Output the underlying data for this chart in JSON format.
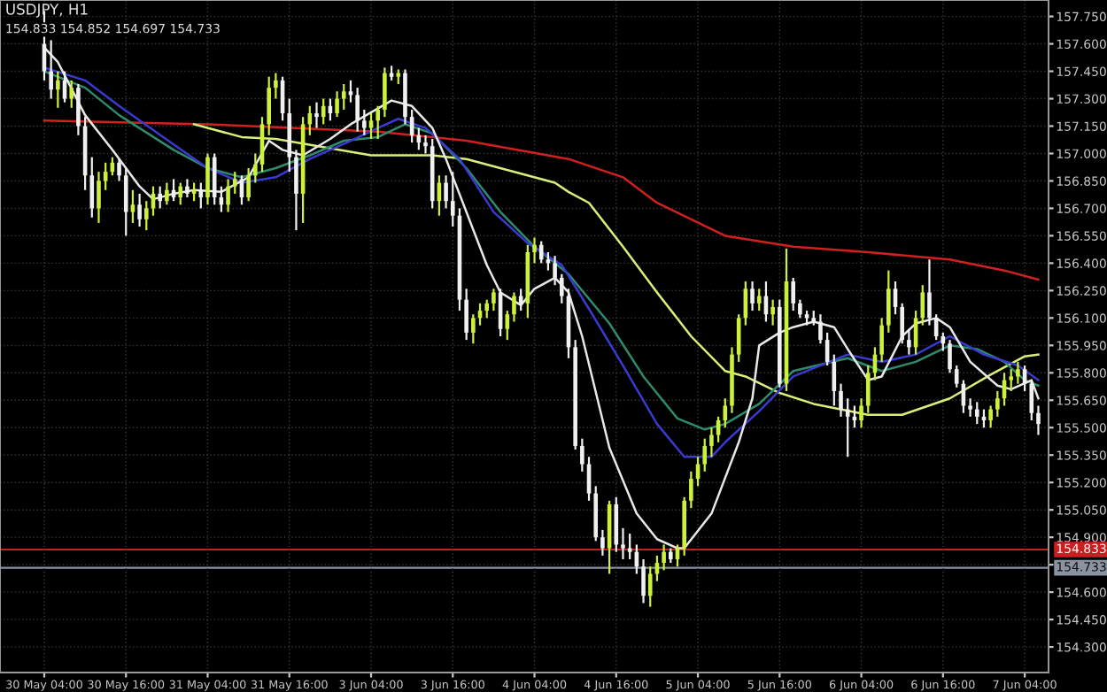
{
  "chart_data": {
    "type": "candlestick",
    "title": "USDJPY, H1",
    "subtitle": "154.833 154.852 154.697 154.733",
    "categories": [
      "30 May 04:00",
      null,
      null,
      null,
      null,
      null,
      null,
      null,
      null,
      null,
      null,
      null,
      "30 May 16:00",
      null,
      null,
      null,
      null,
      null,
      null,
      null,
      null,
      null,
      null,
      null,
      "31 May 04:00",
      null,
      null,
      null,
      null,
      null,
      null,
      null,
      null,
      null,
      null,
      null,
      "31 May 16:00",
      null,
      null,
      null,
      null,
      null,
      null,
      null,
      null,
      null,
      null,
      null,
      "3 Jun 04:00",
      null,
      null,
      null,
      null,
      null,
      null,
      null,
      null,
      null,
      null,
      null,
      "3 Jun 16:00",
      null,
      null,
      null,
      null,
      null,
      null,
      null,
      null,
      null,
      null,
      null,
      "4 Jun 04:00",
      null,
      null,
      null,
      null,
      null,
      null,
      null,
      null,
      null,
      null,
      null,
      "4 Jun 16:00",
      null,
      null,
      null,
      null,
      null,
      null,
      null,
      null,
      null,
      null,
      null,
      "5 Jun 04:00",
      null,
      null,
      null,
      null,
      null,
      null,
      null,
      null,
      null,
      null,
      null,
      "5 Jun 16:00",
      null,
      null,
      null,
      null,
      null,
      null,
      null,
      null,
      null,
      null,
      null,
      "6 Jun 04:00",
      null,
      null,
      null,
      null,
      null,
      null,
      null,
      null,
      null,
      null,
      null,
      "6 Jun 16:00",
      null,
      null,
      null,
      null,
      null,
      null,
      null,
      null,
      null,
      null,
      null,
      "7 Jun 04:00",
      null,
      null
    ],
    "ohlc": [
      [
        157.6,
        157.78,
        157.4,
        157.45
      ],
      [
        157.45,
        157.62,
        157.3,
        157.35
      ],
      [
        157.35,
        157.45,
        157.25,
        157.4
      ],
      [
        157.4,
        157.45,
        157.28,
        157.3
      ],
      [
        157.3,
        157.4,
        157.25,
        157.36
      ],
      [
        157.36,
        157.38,
        157.1,
        157.15
      ],
      [
        157.15,
        157.2,
        156.8,
        156.88
      ],
      [
        156.88,
        156.98,
        156.65,
        156.7
      ],
      [
        156.7,
        156.9,
        156.62,
        156.85
      ],
      [
        156.85,
        156.95,
        156.8,
        156.9
      ],
      [
        156.9,
        156.98,
        156.88,
        156.95
      ],
      [
        156.95,
        156.97,
        156.85,
        156.88
      ],
      [
        156.88,
        156.92,
        156.55,
        156.68
      ],
      [
        156.68,
        156.8,
        156.62,
        156.72
      ],
      [
        156.72,
        156.78,
        156.6,
        156.64
      ],
      [
        156.64,
        156.74,
        156.58,
        156.7
      ],
      [
        156.7,
        156.82,
        156.66,
        156.78
      ],
      [
        156.78,
        156.82,
        156.7,
        156.74
      ],
      [
        156.74,
        156.84,
        156.72,
        156.8
      ],
      [
        156.8,
        156.86,
        156.74,
        156.76
      ],
      [
        156.76,
        156.84,
        156.72,
        156.82
      ],
      [
        156.82,
        156.86,
        156.76,
        156.78
      ],
      [
        156.78,
        156.84,
        156.74,
        156.8
      ],
      [
        156.8,
        156.84,
        156.7,
        156.76
      ],
      [
        156.76,
        157.0,
        156.72,
        156.98
      ],
      [
        156.98,
        157.0,
        156.72,
        156.76
      ],
      [
        156.76,
        156.82,
        156.68,
        156.72
      ],
      [
        156.72,
        156.86,
        156.68,
        156.82
      ],
      [
        156.82,
        156.9,
        156.78,
        156.86
      ],
      [
        156.86,
        156.88,
        156.72,
        156.76
      ],
      [
        156.76,
        156.92,
        156.74,
        156.88
      ],
      [
        156.88,
        157.0,
        156.84,
        156.94
      ],
      [
        156.94,
        157.2,
        156.9,
        157.16
      ],
      [
        157.16,
        157.42,
        157.1,
        157.36
      ],
      [
        157.36,
        157.44,
        157.3,
        157.4
      ],
      [
        157.4,
        157.42,
        157.18,
        157.22
      ],
      [
        157.22,
        157.3,
        156.9,
        156.98
      ],
      [
        156.98,
        157.02,
        156.58,
        156.78
      ],
      [
        156.78,
        157.2,
        156.62,
        157.16
      ],
      [
        157.16,
        157.26,
        157.1,
        157.22
      ],
      [
        157.22,
        157.28,
        157.14,
        157.2
      ],
      [
        157.2,
        157.3,
        157.16,
        157.26
      ],
      [
        157.26,
        157.3,
        157.18,
        157.22
      ],
      [
        157.22,
        157.34,
        157.2,
        157.3
      ],
      [
        157.3,
        157.38,
        157.24,
        157.34
      ],
      [
        157.34,
        157.4,
        157.28,
        157.32
      ],
      [
        157.32,
        157.36,
        157.12,
        157.18
      ],
      [
        157.18,
        157.24,
        157.1,
        157.14
      ],
      [
        157.14,
        157.22,
        157.08,
        157.18
      ],
      [
        157.18,
        157.26,
        157.08,
        157.24
      ],
      [
        157.24,
        157.47,
        157.2,
        157.44
      ],
      [
        157.44,
        157.48,
        157.4,
        157.42
      ],
      [
        157.42,
        157.46,
        157.38,
        157.44
      ],
      [
        157.44,
        157.46,
        157.16,
        157.2
      ],
      [
        157.2,
        157.24,
        157.06,
        157.1
      ],
      [
        157.1,
        157.14,
        157.02,
        157.06
      ],
      [
        157.06,
        157.1,
        157.0,
        157.04
      ],
      [
        157.04,
        157.08,
        156.7,
        156.74
      ],
      [
        156.74,
        156.88,
        156.66,
        156.84
      ],
      [
        156.84,
        156.88,
        156.7,
        156.74
      ],
      [
        156.74,
        156.9,
        156.6,
        156.66
      ],
      [
        156.66,
        156.7,
        156.14,
        156.2
      ],
      [
        156.2,
        156.26,
        155.98,
        156.02
      ],
      [
        156.02,
        156.12,
        155.96,
        156.1
      ],
      [
        156.1,
        156.18,
        156.06,
        156.14
      ],
      [
        156.14,
        156.2,
        156.1,
        156.18
      ],
      [
        156.18,
        156.26,
        156.14,
        156.24
      ],
      [
        156.24,
        156.26,
        156.0,
        156.04
      ],
      [
        156.04,
        156.14,
        155.98,
        156.12
      ],
      [
        156.12,
        156.24,
        156.08,
        156.22
      ],
      [
        156.22,
        156.26,
        156.14,
        156.18
      ],
      [
        156.18,
        156.5,
        156.1,
        156.46
      ],
      [
        156.46,
        156.54,
        156.4,
        156.5
      ],
      [
        156.5,
        156.52,
        156.4,
        156.42
      ],
      [
        156.42,
        156.46,
        156.36,
        156.4
      ],
      [
        156.4,
        156.44,
        156.28,
        156.32
      ],
      [
        156.32,
        156.34,
        156.18,
        156.22
      ],
      [
        156.22,
        156.26,
        155.88,
        155.94
      ],
      [
        155.94,
        155.98,
        155.38,
        155.4
      ],
      [
        155.4,
        155.44,
        155.26,
        155.3
      ],
      [
        155.3,
        155.34,
        155.1,
        155.14
      ],
      [
        155.14,
        155.18,
        154.88,
        154.9
      ],
      [
        154.9,
        154.94,
        154.8,
        154.84
      ],
      [
        154.84,
        155.1,
        154.7,
        155.08
      ],
      [
        155.08,
        155.12,
        154.82,
        154.86
      ],
      [
        154.86,
        154.95,
        154.78,
        154.84
      ],
      [
        154.84,
        154.92,
        154.78,
        154.82
      ],
      [
        154.82,
        154.86,
        154.7,
        154.74
      ],
      [
        154.74,
        154.78,
        154.54,
        154.58
      ],
      [
        154.58,
        154.74,
        154.52,
        154.7
      ],
      [
        154.7,
        154.8,
        154.66,
        154.76
      ],
      [
        154.76,
        154.86,
        154.72,
        154.82
      ],
      [
        154.82,
        154.84,
        154.76,
        154.78
      ],
      [
        154.78,
        154.86,
        154.74,
        154.84
      ],
      [
        154.84,
        155.12,
        154.8,
        155.1
      ],
      [
        155.1,
        155.26,
        155.06,
        155.22
      ],
      [
        155.22,
        155.34,
        155.18,
        155.3
      ],
      [
        155.3,
        155.44,
        155.26,
        155.4
      ],
      [
        155.4,
        155.5,
        155.34,
        155.46
      ],
      [
        155.46,
        155.56,
        155.42,
        155.54
      ],
      [
        155.54,
        155.66,
        155.5,
        155.62
      ],
      [
        155.62,
        155.94,
        155.58,
        155.9
      ],
      [
        155.9,
        156.12,
        155.86,
        156.1
      ],
      [
        156.1,
        156.3,
        156.06,
        156.26
      ],
      [
        156.26,
        156.3,
        156.14,
        156.18
      ],
      [
        156.18,
        156.26,
        156.14,
        156.22
      ],
      [
        156.22,
        156.3,
        156.08,
        156.12
      ],
      [
        156.12,
        156.2,
        156.06,
        156.16
      ],
      [
        156.16,
        156.2,
        155.72,
        155.74
      ],
      [
        155.74,
        156.48,
        155.7,
        156.3
      ],
      [
        156.3,
        156.32,
        156.14,
        156.18
      ],
      [
        156.18,
        156.2,
        156.1,
        156.12
      ],
      [
        156.12,
        156.14,
        156.06,
        156.1
      ],
      [
        156.1,
        156.14,
        156.06,
        156.08
      ],
      [
        156.08,
        156.12,
        155.96,
        155.98
      ],
      [
        155.98,
        156.02,
        155.84,
        155.86
      ],
      [
        155.86,
        155.9,
        155.62,
        155.7
      ],
      [
        155.7,
        155.74,
        155.56,
        155.6
      ],
      [
        155.6,
        155.66,
        155.34,
        155.56
      ],
      [
        155.56,
        155.62,
        155.5,
        155.54
      ],
      [
        155.54,
        155.66,
        155.5,
        155.62
      ],
      [
        155.62,
        155.84,
        155.58,
        155.8
      ],
      [
        155.8,
        155.94,
        155.76,
        155.9
      ],
      [
        155.9,
        156.1,
        155.86,
        156.06
      ],
      [
        156.06,
        156.36,
        156.02,
        156.26
      ],
      [
        156.26,
        156.3,
        156.12,
        156.16
      ],
      [
        156.16,
        156.18,
        155.96,
        155.98
      ],
      [
        155.98,
        156.04,
        155.9,
        155.94
      ],
      [
        155.94,
        156.14,
        155.9,
        156.1
      ],
      [
        156.1,
        156.28,
        156.06,
        156.24
      ],
      [
        156.24,
        156.42,
        156.06,
        156.1
      ],
      [
        156.1,
        156.12,
        155.98,
        156.0
      ],
      [
        156.0,
        156.02,
        155.92,
        155.96
      ],
      [
        155.96,
        155.98,
        155.8,
        155.82
      ],
      [
        155.82,
        155.84,
        155.72,
        155.74
      ],
      [
        155.74,
        155.76,
        155.58,
        155.62
      ],
      [
        155.62,
        155.66,
        155.56,
        155.6
      ],
      [
        155.6,
        155.64,
        155.52,
        155.56
      ],
      [
        155.56,
        155.6,
        155.5,
        155.54
      ],
      [
        155.54,
        155.62,
        155.5,
        155.6
      ],
      [
        155.6,
        155.7,
        155.56,
        155.66
      ],
      [
        155.66,
        155.8,
        155.62,
        155.76
      ],
      [
        155.76,
        155.82,
        155.7,
        155.78
      ],
      [
        155.78,
        155.86,
        155.74,
        155.82
      ],
      [
        155.82,
        155.84,
        155.7,
        155.74
      ],
      [
        155.74,
        155.76,
        155.54,
        155.58
      ],
      [
        155.58,
        155.62,
        155.46,
        155.52
      ]
    ],
    "colors": [
      "#f0f0f0",
      "#f0f0f0",
      "#ccf03c",
      "#f0f0f0",
      "#ccf03c",
      "#f0f0f0",
      "#f0f0f0",
      "#f0f0f0",
      "#ccf03c",
      "#ccf03c",
      "#ccf03c",
      "#f0f0f0",
      "#f0f0f0",
      "#ccf03c",
      "#f0f0f0",
      "#ccf03c",
      "#ccf03c",
      "#f0f0f0",
      "#ccf03c",
      "#f0f0f0",
      "#ccf03c",
      "#f0f0f0",
      "#ccf03c",
      "#f0f0f0",
      "#ccf03c",
      "#f0f0f0",
      "#f0f0f0",
      "#ccf03c",
      "#ccf03c",
      "#f0f0f0",
      "#ccf03c",
      "#ccf03c",
      "#ccf03c",
      "#ccf03c",
      "#ccf03c",
      "#f0f0f0",
      "#f0f0f0",
      "#f0f0f0",
      "#ccf03c",
      "#ccf03c",
      "#f0f0f0",
      "#ccf03c",
      "#f0f0f0",
      "#ccf03c",
      "#ccf03c",
      "#f0f0f0",
      "#f0f0f0",
      "#f0f0f0",
      "#ccf03c",
      "#ccf03c",
      "#ccf03c",
      "#f0f0f0",
      "#ccf03c",
      "#f0f0f0",
      "#f0f0f0",
      "#f0f0f0",
      "#f0f0f0",
      "#f0f0f0",
      "#ccf03c",
      "#f0f0f0",
      "#f0f0f0",
      "#f0f0f0",
      "#f0f0f0",
      "#ccf03c",
      "#ccf03c",
      "#ccf03c",
      "#ccf03c",
      "#f0f0f0",
      "#ccf03c",
      "#ccf03c",
      "#f0f0f0",
      "#ccf03c",
      "#ccf03c",
      "#f0f0f0",
      "#f0f0f0",
      "#f0f0f0",
      "#f0f0f0",
      "#f0f0f0",
      "#f0f0f0",
      "#f0f0f0",
      "#f0f0f0",
      "#f0f0f0",
      "#f0f0f0",
      "#ccf03c",
      "#f0f0f0",
      "#f0f0f0",
      "#f0f0f0",
      "#f0f0f0",
      "#f0f0f0",
      "#ccf03c",
      "#ccf03c",
      "#ccf03c",
      "#f0f0f0",
      "#ccf03c",
      "#ccf03c",
      "#ccf03c",
      "#ccf03c",
      "#ccf03c",
      "#ccf03c",
      "#ccf03c",
      "#ccf03c",
      "#ccf03c",
      "#ccf03c",
      "#ccf03c",
      "#f0f0f0",
      "#ccf03c",
      "#f0f0f0",
      "#ccf03c",
      "#f0f0f0",
      "#ccf03c",
      "#f0f0f0",
      "#f0f0f0",
      "#f0f0f0",
      "#f0f0f0",
      "#f0f0f0",
      "#f0f0f0",
      "#f0f0f0",
      "#f0f0f0",
      "#f0f0f0",
      "#f0f0f0",
      "#ccf03c",
      "#ccf03c",
      "#ccf03c",
      "#ccf03c",
      "#ccf03c",
      "#f0f0f0",
      "#f0f0f0",
      "#f0f0f0",
      "#ccf03c",
      "#ccf03c",
      "#f0f0f0",
      "#f0f0f0",
      "#f0f0f0",
      "#f0f0f0",
      "#f0f0f0",
      "#f0f0f0",
      "#f0f0f0",
      "#f0f0f0",
      "#f0f0f0",
      "#ccf03c",
      "#ccf03c",
      "#ccf03c",
      "#ccf03c",
      "#ccf03c",
      "#f0f0f0",
      "#f0f0f0",
      "#f0f0f0"
    ],
    "series": [
      {
        "type": "line",
        "color": "#d02020",
        "values": [
          157.18,
          null,
          null,
          null,
          null,
          null,
          null,
          null,
          null,
          null,
          null,
          null,
          null,
          null,
          null,
          null,
          null,
          null,
          null,
          null,
          null,
          null,
          null,
          null,
          157.16,
          null,
          null,
          null,
          null,
          null,
          null,
          null,
          null,
          null,
          null,
          null,
          null,
          null,
          null,
          null,
          null,
          null,
          null,
          null,
          null,
          null,
          null,
          null,
          null,
          157.12,
          null,
          null,
          null,
          null,
          null,
          null,
          null,
          null,
          null,
          null,
          null,
          null,
          157.07,
          null,
          null,
          null,
          null,
          null,
          null,
          null,
          null,
          null,
          null,
          null,
          null,
          null,
          null,
          156.97,
          null,
          null,
          null,
          null,
          null,
          null,
          null,
          156.87,
          null,
          null,
          null,
          null,
          156.73,
          null,
          null,
          null,
          null,
          null,
          null,
          null,
          null,
          null,
          156.55,
          null,
          null,
          null,
          null,
          null,
          null,
          null,
          null,
          null,
          156.49,
          null,
          null,
          null,
          null,
          null,
          null,
          null,
          null,
          null,
          null,
          156.46,
          null,
          null,
          null,
          null,
          null,
          null,
          null,
          null,
          null,
          null,
          null,
          156.42,
          null,
          null,
          null,
          null,
          null,
          null,
          null,
          156.36,
          null,
          null,
          null,
          null,
          156.31
        ]
      },
      {
        "type": "line",
        "color": "#d8f07a",
        "values": [
          null,
          null,
          null,
          null,
          null,
          null,
          null,
          null,
          null,
          null,
          null,
          null,
          null,
          null,
          null,
          null,
          null,
          null,
          null,
          null,
          null,
          null,
          157.16,
          null,
          null,
          null,
          null,
          null,
          null,
          157.09,
          null,
          null,
          null,
          null,
          157.08,
          null,
          null,
          null,
          null,
          null,
          null,
          null,
          null,
          null,
          null,
          null,
          null,
          null,
          156.99,
          null,
          null,
          null,
          null,
          null,
          null,
          null,
          null,
          156.99,
          null,
          null,
          null,
          null,
          156.97,
          null,
          null,
          null,
          null,
          null,
          null,
          null,
          null,
          null,
          null,
          null,
          null,
          156.84,
          null,
          156.79,
          null,
          null,
          156.73,
          null,
          null,
          null,
          null,
          156.49,
          null,
          null,
          null,
          null,
          156.24,
          null,
          null,
          null,
          null,
          156.0,
          null,
          null,
          null,
          null,
          155.81,
          null,
          null,
          155.78,
          null,
          null,
          null,
          null,
          155.69,
          null,
          null,
          null,
          null,
          155.63,
          null,
          null,
          null,
          null,
          null,
          null,
          null,
          155.57,
          null,
          null,
          null,
          null,
          155.57,
          null,
          null,
          null,
          null,
          null,
          null,
          155.66,
          null,
          null,
          null,
          null,
          null,
          155.79,
          null,
          null,
          null,
          null,
          155.89,
          null,
          155.9
        ]
      },
      {
        "type": "line",
        "color": "#2e8b6e",
        "values": [
          157.45,
          null,
          null,
          null,
          null,
          null,
          157.36,
          null,
          null,
          null,
          null,
          157.21,
          null,
          null,
          null,
          null,
          null,
          null,
          null,
          157.02,
          null,
          null,
          null,
          null,
          156.92,
          null,
          null,
          null,
          null,
          156.87,
          null,
          null,
          null,
          null,
          156.92,
          null,
          null,
          null,
          null,
          156.99,
          null,
          null,
          null,
          null,
          157.07,
          null,
          null,
          null,
          null,
          157.09,
          null,
          null,
          null,
          157.16,
          null,
          null,
          null,
          157.11,
          null,
          null,
          null,
          null,
          156.92,
          null,
          null,
          null,
          null,
          156.68,
          null,
          null,
          null,
          null,
          156.49,
          null,
          null,
          null,
          null,
          156.34,
          null,
          null,
          null,
          null,
          null,
          156.07,
          null,
          null,
          null,
          null,
          155.78,
          null,
          null,
          null,
          null,
          155.55,
          null,
          null,
          null,
          155.49,
          null,
          null,
          155.52,
          null,
          null,
          null,
          null,
          155.63,
          null,
          null,
          null,
          null,
          155.81,
          null,
          null,
          null,
          null,
          null,
          null,
          null,
          155.88,
          null,
          null,
          null,
          null,
          155.81,
          null,
          null,
          null,
          null,
          155.86,
          null,
          null,
          null,
          null,
          155.95,
          null,
          null,
          null,
          155.93,
          null,
          null,
          null,
          155.86,
          null,
          null,
          155.76,
          null,
          155.73
        ]
      },
      {
        "type": "line",
        "color": "#3a3ad0",
        "values": [
          157.47,
          null,
          null,
          null,
          null,
          null,
          157.4,
          null,
          null,
          null,
          null,
          157.26,
          null,
          null,
          null,
          null,
          null,
          null,
          null,
          157.05,
          null,
          null,
          null,
          null,
          156.92,
          null,
          null,
          null,
          null,
          156.84,
          null,
          null,
          null,
          null,
          156.87,
          null,
          null,
          null,
          null,
          156.97,
          null,
          null,
          null,
          null,
          null,
          157.07,
          null,
          null,
          null,
          157.14,
          null,
          null,
          157.19,
          null,
          null,
          null,
          157.14,
          null,
          null,
          null,
          null,
          156.97,
          null,
          null,
          null,
          null,
          156.68,
          null,
          null,
          null,
          null,
          156.51,
          null,
          null,
          null,
          null,
          156.39,
          null,
          null,
          null,
          156.15,
          null,
          null,
          null,
          null,
          155.84,
          null,
          null,
          null,
          null,
          155.52,
          null,
          null,
          null,
          155.34,
          null,
          null,
          null,
          155.34,
          null,
          155.42,
          null,
          null,
          null,
          null,
          155.59,
          null,
          null,
          null,
          null,
          155.78,
          null,
          null,
          null,
          null,
          null,
          null,
          null,
          155.9,
          null,
          null,
          null,
          null,
          155.86,
          null,
          null,
          null,
          null,
          155.9,
          null,
          null,
          null,
          null,
          156.0,
          null,
          null,
          null,
          null,
          155.9,
          null,
          null,
          null,
          null,
          155.84,
          null,
          null,
          155.76
        ]
      },
      {
        "type": "line",
        "color": "#e8e8e8",
        "values": [
          157.58,
          null,
          157.5,
          null,
          null,
          null,
          157.21,
          null,
          null,
          null,
          157.02,
          null,
          null,
          null,
          156.82,
          null,
          156.75,
          null,
          null,
          156.78,
          null,
          null,
          156.8,
          null,
          null,
          null,
          156.79,
          null,
          null,
          null,
          156.87,
          null,
          null,
          157.07,
          null,
          157.02,
          null,
          null,
          156.99,
          null,
          null,
          null,
          157.08,
          null,
          null,
          157.16,
          null,
          null,
          null,
          null,
          null,
          157.29,
          null,
          null,
          157.26,
          null,
          null,
          157.14,
          null,
          156.97,
          null,
          null,
          156.68,
          null,
          null,
          156.39,
          null,
          156.24,
          null,
          null,
          156.17,
          null,
          156.26,
          null,
          null,
          156.32,
          null,
          156.24,
          null,
          156.0,
          null,
          null,
          null,
          155.39,
          null,
          null,
          null,
          155.03,
          null,
          null,
          154.89,
          null,
          null,
          154.84,
          154.84,
          null,
          null,
          null,
          155.03,
          null,
          null,
          null,
          155.42,
          null,
          155.66,
          155.95,
          null,
          null,
          156.02,
          null,
          156.05,
          null,
          null,
          156.08,
          null,
          null,
          156.05,
          null,
          155.93,
          null,
          null,
          155.76,
          null,
          155.78,
          null,
          null,
          156.0,
          null,
          156.07,
          null,
          null,
          156.1,
          null,
          156.05,
          null,
          null,
          155.86,
          null,
          null,
          null,
          155.73,
          null,
          155.71,
          null,
          null,
          155.76,
          155.66
        ]
      }
    ],
    "ylim": [
      154.16,
      157.84
    ],
    "yticks": [
      {
        "value": 157.75,
        "label": "157.750"
      },
      {
        "value": 157.6,
        "label": "157.600"
      },
      {
        "value": 157.45,
        "label": "157.450"
      },
      {
        "value": 157.3,
        "label": "157.300"
      },
      {
        "value": 157.15,
        "label": "157.150"
      },
      {
        "value": 157.0,
        "label": "157.000"
      },
      {
        "value": 156.85,
        "label": "156.850"
      },
      {
        "value": 156.7,
        "label": "156.700"
      },
      {
        "value": 156.55,
        "label": "156.550"
      },
      {
        "value": 156.4,
        "label": "156.400"
      },
      {
        "value": 156.25,
        "label": "156.250"
      },
      {
        "value": 156.1,
        "label": "156.100"
      },
      {
        "value": 155.95,
        "label": "155.950"
      },
      {
        "value": 155.8,
        "label": "155.800"
      },
      {
        "value": 155.65,
        "label": "155.650"
      },
      {
        "value": 155.5,
        "label": "155.500"
      },
      {
        "value": 155.35,
        "label": "155.350"
      },
      {
        "value": 155.2,
        "label": "155.200"
      },
      {
        "value": 155.05,
        "label": "155.050"
      },
      {
        "value": 154.9,
        "label": "154.900"
      },
      {
        "value": 154.75,
        "label": null
      },
      {
        "value": 154.6,
        "label": "154.600"
      },
      {
        "value": 154.45,
        "label": "154.450"
      },
      {
        "value": 154.3,
        "label": "154.300"
      }
    ],
    "ref_lines": [
      {
        "axis": "y",
        "value": 154.833,
        "label": "154.833",
        "color": "#c82020"
      },
      {
        "axis": "y",
        "value": 154.733,
        "label": "154.733",
        "color": "#8a94a0"
      }
    ],
    "grid": true
  }
}
